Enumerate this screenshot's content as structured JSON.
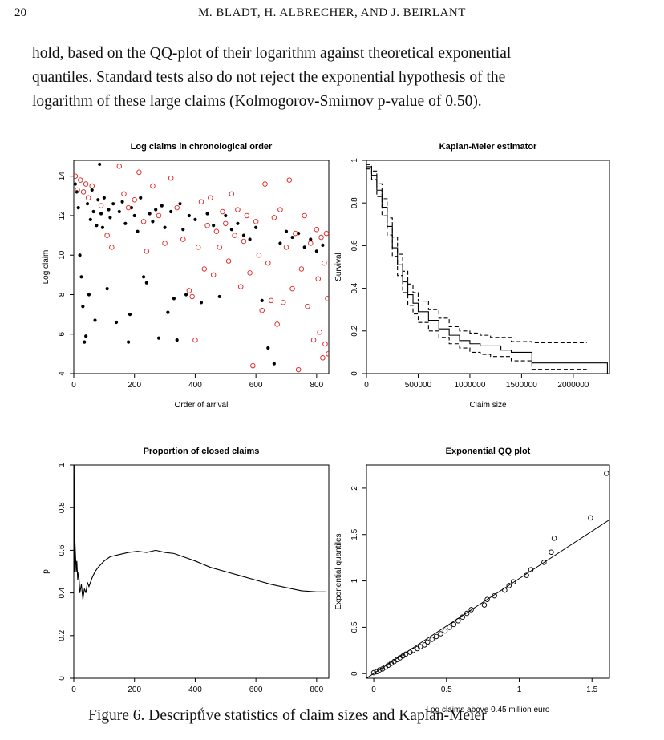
{
  "header": {
    "page_number": "20",
    "running_head": "M. BLADT, H. ALBRECHER, AND J. BEIRLANT"
  },
  "body": {
    "lines": [
      "hold, based on the QQ-plot of their logarithm against theoretical exponential",
      "quantiles. Standard tests also do not reject the exponential hypothesis of the",
      "logarithm of these large claims (Kolmogorov-Smirnov p-value of 0.50)."
    ]
  },
  "caption": {
    "text": "Figure 6. Descriptive statistics of claim sizes and Kaplan-Meier"
  },
  "colors": {
    "closed": "#000000",
    "open": "#e02020",
    "axis": "#000000"
  },
  "chart_data": [
    {
      "type": "scatter",
      "title": "Log claims in chronological order",
      "xlabel": "Order of arrival",
      "ylabel": "Log claim",
      "xlim": [
        0,
        840
      ],
      "ylim": [
        4,
        14.8
      ],
      "xticks": [
        0,
        200,
        400,
        600,
        800
      ],
      "yticks": [
        4,
        6,
        8,
        10,
        12,
        14
      ],
      "series": [
        {
          "marker": "filled-circle",
          "color": "#000000",
          "points": [
            [
              5,
              13.6
            ],
            [
              10,
              13.2
            ],
            [
              15,
              12.4
            ],
            [
              20,
              10.0
            ],
            [
              25,
              8.9
            ],
            [
              30,
              7.4
            ],
            [
              35,
              5.6
            ],
            [
              40,
              5.9
            ],
            [
              45,
              12.6
            ],
            [
              50,
              8.0
            ],
            [
              55,
              11.8
            ],
            [
              60,
              13.3
            ],
            [
              65,
              12.2
            ],
            [
              70,
              6.7
            ],
            [
              75,
              11.5
            ],
            [
              80,
              12.8
            ],
            [
              85,
              14.6
            ],
            [
              90,
              12.1
            ],
            [
              95,
              11.4
            ],
            [
              100,
              12.9
            ],
            [
              110,
              8.3
            ],
            [
              115,
              12.3
            ],
            [
              120,
              11.9
            ],
            [
              130,
              12.6
            ],
            [
              140,
              6.6
            ],
            [
              150,
              12.2
            ],
            [
              160,
              12.7
            ],
            [
              170,
              11.6
            ],
            [
              180,
              5.6
            ],
            [
              185,
              7.0
            ],
            [
              190,
              12.4
            ],
            [
              200,
              12.0
            ],
            [
              210,
              11.2
            ],
            [
              220,
              12.9
            ],
            [
              230,
              8.9
            ],
            [
              240,
              8.6
            ],
            [
              250,
              12.1
            ],
            [
              260,
              11.7
            ],
            [
              270,
              12.3
            ],
            [
              280,
              5.8
            ],
            [
              290,
              12.5
            ],
            [
              300,
              11.4
            ],
            [
              310,
              7.1
            ],
            [
              320,
              12.2
            ],
            [
              330,
              7.8
            ],
            [
              340,
              5.7
            ],
            [
              350,
              12.6
            ],
            [
              360,
              11.3
            ],
            [
              370,
              8.0
            ],
            [
              380,
              12.0
            ],
            [
              400,
              11.8
            ],
            [
              420,
              7.6
            ],
            [
              440,
              12.1
            ],
            [
              460,
              11.5
            ],
            [
              480,
              7.9
            ],
            [
              500,
              12.0
            ],
            [
              520,
              11.3
            ],
            [
              540,
              11.6
            ],
            [
              560,
              11.0
            ],
            [
              580,
              10.8
            ],
            [
              600,
              11.4
            ],
            [
              620,
              7.7
            ],
            [
              640,
              5.3
            ],
            [
              660,
              4.5
            ],
            [
              680,
              10.6
            ],
            [
              700,
              11.2
            ],
            [
              720,
              10.9
            ],
            [
              740,
              11.1
            ],
            [
              760,
              10.4
            ],
            [
              780,
              10.8
            ],
            [
              800,
              10.2
            ],
            [
              820,
              10.5
            ]
          ]
        },
        {
          "marker": "open-circle",
          "color": "#e02020",
          "points": [
            [
              5,
              14.0
            ],
            [
              12,
              13.3
            ],
            [
              22,
              13.8
            ],
            [
              32,
              13.2
            ],
            [
              40,
              13.6
            ],
            [
              48,
              12.9
            ],
            [
              60,
              13.5
            ],
            [
              90,
              12.5
            ],
            [
              110,
              11.0
            ],
            [
              125,
              10.4
            ],
            [
              150,
              14.5
            ],
            [
              165,
              13.1
            ],
            [
              180,
              12.4
            ],
            [
              200,
              12.8
            ],
            [
              215,
              14.2
            ],
            [
              230,
              11.7
            ],
            [
              240,
              10.2
            ],
            [
              260,
              13.5
            ],
            [
              280,
              12.0
            ],
            [
              300,
              10.6
            ],
            [
              320,
              13.9
            ],
            [
              340,
              12.4
            ],
            [
              360,
              10.8
            ],
            [
              380,
              8.2
            ],
            [
              390,
              7.9
            ],
            [
              400,
              5.7
            ],
            [
              410,
              10.4
            ],
            [
              420,
              12.7
            ],
            [
              430,
              9.3
            ],
            [
              440,
              11.5
            ],
            [
              450,
              12.9
            ],
            [
              460,
              9.0
            ],
            [
              470,
              11.2
            ],
            [
              480,
              10.4
            ],
            [
              490,
              12.2
            ],
            [
              500,
              11.6
            ],
            [
              510,
              9.7
            ],
            [
              520,
              13.1
            ],
            [
              530,
              11.0
            ],
            [
              540,
              12.3
            ],
            [
              550,
              8.4
            ],
            [
              560,
              10.7
            ],
            [
              570,
              12.0
            ],
            [
              580,
              9.1
            ],
            [
              590,
              4.4
            ],
            [
              600,
              11.7
            ],
            [
              610,
              10.0
            ],
            [
              620,
              7.2
            ],
            [
              630,
              13.6
            ],
            [
              640,
              9.6
            ],
            [
              650,
              7.7
            ],
            [
              660,
              11.9
            ],
            [
              670,
              6.5
            ],
            [
              680,
              12.3
            ],
            [
              690,
              7.6
            ],
            [
              700,
              10.4
            ],
            [
              710,
              13.8
            ],
            [
              720,
              8.3
            ],
            [
              730,
              11.1
            ],
            [
              740,
              4.2
            ],
            [
              750,
              9.3
            ],
            [
              760,
              12.0
            ],
            [
              770,
              7.4
            ],
            [
              780,
              10.6
            ],
            [
              790,
              5.7
            ],
            [
              800,
              11.3
            ],
            [
              805,
              8.8
            ],
            [
              810,
              6.1
            ],
            [
              815,
              10.9
            ],
            [
              820,
              4.8
            ],
            [
              825,
              9.6
            ],
            [
              828,
              5.5
            ],
            [
              832,
              11.1
            ],
            [
              836,
              7.8
            ],
            [
              838,
              5.0
            ]
          ]
        }
      ]
    },
    {
      "type": "line",
      "title": "Kaplan-Meier estimator",
      "xlabel": "Claim size",
      "ylabel": "Survival",
      "xlim": [
        0,
        2350000
      ],
      "ylim": [
        0,
        1
      ],
      "xticks": [
        "0",
        "500000",
        "1000000",
        "1500000",
        "2000000"
      ],
      "xtick_values": [
        0,
        500000,
        1000000,
        1500000,
        2000000
      ],
      "yticks": [
        0.0,
        0.2,
        0.4,
        0.6,
        0.8,
        1.0
      ],
      "series": [
        {
          "name": "",
          "style": "solid",
          "x": [
            0,
            50000,
            100000,
            150000,
            200000,
            250000,
            300000,
            350000,
            400000,
            450000,
            500000,
            600000,
            700000,
            800000,
            900000,
            1000000,
            1100000,
            1200000,
            1300000,
            1400000,
            1600000,
            2000000,
            2330000,
            2330000
          ],
          "y": [
            0.97,
            0.93,
            0.86,
            0.78,
            0.69,
            0.59,
            0.51,
            0.43,
            0.37,
            0.33,
            0.29,
            0.25,
            0.21,
            0.18,
            0.155,
            0.14,
            0.13,
            0.13,
            0.11,
            0.1,
            0.05,
            0.05,
            0.05,
            0.0
          ]
        },
        {
          "name": "",
          "style": "dashed",
          "x": [
            0,
            50000,
            100000,
            150000,
            200000,
            250000,
            300000,
            350000,
            400000,
            450000,
            500000,
            600000,
            700000,
            800000,
            900000,
            1000000,
            1100000,
            1200000,
            1400000,
            1600000,
            2130000
          ],
          "y": [
            0.98,
            0.95,
            0.89,
            0.82,
            0.73,
            0.64,
            0.56,
            0.48,
            0.42,
            0.38,
            0.34,
            0.3,
            0.26,
            0.22,
            0.2,
            0.19,
            0.18,
            0.17,
            0.15,
            0.145,
            0.145
          ]
        },
        {
          "name": "",
          "style": "dashed",
          "x": [
            0,
            50000,
            100000,
            150000,
            200000,
            250000,
            300000,
            350000,
            400000,
            450000,
            500000,
            600000,
            700000,
            800000,
            900000,
            1000000,
            1100000,
            1200000,
            1400000,
            1600000,
            2130000
          ],
          "y": [
            0.96,
            0.91,
            0.83,
            0.74,
            0.65,
            0.55,
            0.46,
            0.38,
            0.32,
            0.28,
            0.24,
            0.2,
            0.17,
            0.14,
            0.12,
            0.1,
            0.09,
            0.08,
            0.06,
            0.02,
            0.02
          ]
        }
      ]
    },
    {
      "type": "line",
      "title": "Proportion of closed claims",
      "xlabel": "k",
      "ylabel": "p",
      "xlim": [
        0,
        840
      ],
      "ylim": [
        0,
        1
      ],
      "xticks": [
        0,
        200,
        400,
        600,
        800
      ],
      "yticks": [
        0.0,
        0.2,
        0.4,
        0.6,
        0.8,
        1.0
      ],
      "series": [
        {
          "name": "",
          "x": [
            1,
            2,
            3,
            5,
            8,
            10,
            13,
            16,
            20,
            25,
            30,
            35,
            40,
            45,
            50,
            60,
            70,
            80,
            100,
            120,
            150,
            180,
            210,
            240,
            270,
            300,
            330,
            360,
            400,
            450,
            500,
            550,
            600,
            650,
            700,
            750,
            800,
            830
          ],
          "y": [
            1.0,
            0.5,
            0.67,
            0.6,
            0.5,
            0.55,
            0.46,
            0.5,
            0.4,
            0.44,
            0.37,
            0.42,
            0.4,
            0.45,
            0.43,
            0.47,
            0.5,
            0.52,
            0.55,
            0.57,
            0.58,
            0.59,
            0.595,
            0.59,
            0.6,
            0.59,
            0.585,
            0.57,
            0.55,
            0.52,
            0.5,
            0.48,
            0.46,
            0.44,
            0.425,
            0.41,
            0.405,
            0.405
          ]
        }
      ]
    },
    {
      "type": "scatter",
      "title": "Exponential QQ plot",
      "xlabel": "Log claims above 0.45 million euro",
      "ylabel": "Exponential quantiles",
      "xlim": [
        -0.05,
        1.62
      ],
      "ylim": [
        -0.05,
        2.25
      ],
      "xticks": [
        0.0,
        0.5,
        1.0,
        1.5
      ],
      "yticks": [
        0.0,
        0.5,
        1.0,
        1.5,
        2.0
      ],
      "reference_line": {
        "x": [
          -0.05,
          1.62
        ],
        "y": [
          -0.05,
          1.66
        ]
      },
      "series": [
        {
          "marker": "open-circle",
          "color": "#000000",
          "points": [
            [
              0.0,
              0.01
            ],
            [
              0.02,
              0.02
            ],
            [
              0.04,
              0.04
            ],
            [
              0.06,
              0.05
            ],
            [
              0.08,
              0.07
            ],
            [
              0.1,
              0.09
            ],
            [
              0.12,
              0.11
            ],
            [
              0.14,
              0.13
            ],
            [
              0.16,
              0.15
            ],
            [
              0.18,
              0.17
            ],
            [
              0.2,
              0.19
            ],
            [
              0.22,
              0.21
            ],
            [
              0.25,
              0.23
            ],
            [
              0.27,
              0.25
            ],
            [
              0.3,
              0.27
            ],
            [
              0.32,
              0.29
            ],
            [
              0.35,
              0.31
            ],
            [
              0.37,
              0.34
            ],
            [
              0.4,
              0.37
            ],
            [
              0.43,
              0.4
            ],
            [
              0.46,
              0.43
            ],
            [
              0.49,
              0.46
            ],
            [
              0.52,
              0.5
            ],
            [
              0.55,
              0.53
            ],
            [
              0.58,
              0.57
            ],
            [
              0.61,
              0.61
            ],
            [
              0.64,
              0.65
            ],
            [
              0.67,
              0.69
            ],
            [
              0.76,
              0.74
            ],
            [
              0.78,
              0.8
            ],
            [
              0.83,
              0.84
            ],
            [
              0.9,
              0.9
            ],
            [
              0.93,
              0.95
            ],
            [
              0.96,
              0.99
            ],
            [
              1.05,
              1.06
            ],
            [
              1.08,
              1.12
            ],
            [
              1.17,
              1.2
            ],
            [
              1.22,
              1.31
            ],
            [
              1.24,
              1.46
            ],
            [
              1.49,
              1.68
            ],
            [
              1.6,
              2.16
            ]
          ]
        }
      ]
    }
  ]
}
